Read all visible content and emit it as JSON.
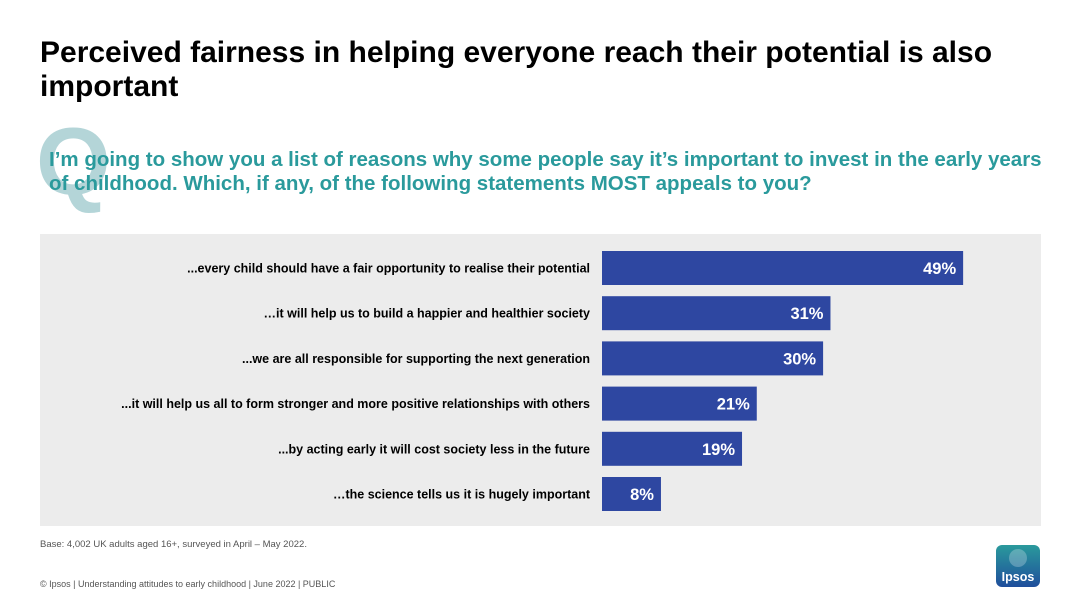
{
  "header": {
    "title": "Perceived fairness in helping everyone reach their potential is also important",
    "question_mark": "Q",
    "question": "I’m going to show you a list of reasons why some people say it’s important to invest in the early years of childhood. Which, if any, of the following statements MOST appeals to you?"
  },
  "chart_data": {
    "type": "bar",
    "orientation": "horizontal",
    "categories": [
      "...every child should have a fair opportunity to realise their potential",
      "…it will help us to build a happier and healthier society",
      "...we are all responsible for supporting the next generation",
      "...it will help us all to form stronger and more positive relationships with others",
      "...by acting early it will cost society less in the future",
      "…the science tells us it is hugely important"
    ],
    "values": [
      49,
      31,
      30,
      21,
      19,
      8
    ],
    "value_labels": [
      "49%",
      "31%",
      "30%",
      "21%",
      "19%",
      "8%"
    ],
    "xlim": [
      0,
      100
    ],
    "grid": false,
    "bar_color": "#2e47a1",
    "panel_color": "#ececec"
  },
  "notes": {
    "base": "Base: 4,002 UK adults aged 16+, surveyed in April – May 2022."
  },
  "footer": {
    "text": "© Ipsos | Understanding attitudes to early childhood | June 2022 | PUBLIC"
  },
  "logo": {
    "text": "Ipsos",
    "color_top": "#2a9a9c",
    "color_bottom": "#1f4e9c"
  }
}
